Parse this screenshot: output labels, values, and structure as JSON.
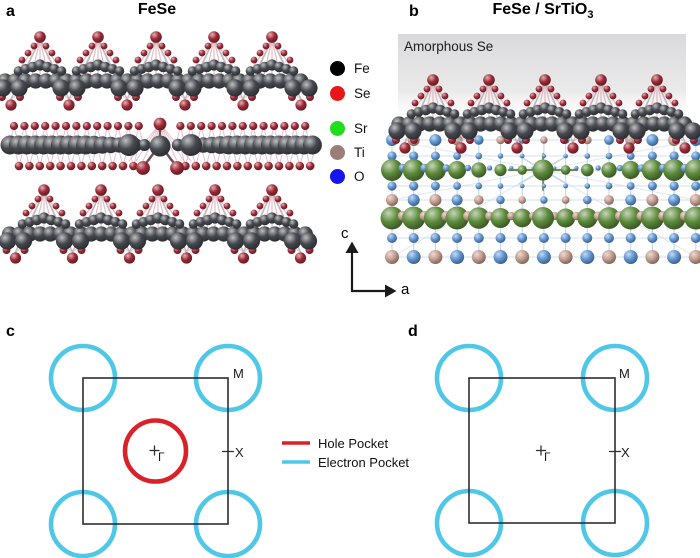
{
  "panels": {
    "a": {
      "label": "a",
      "title": "FeSe"
    },
    "b": {
      "label": "b",
      "title_main": "FeSe / SrTiO",
      "title_sub": "3",
      "overlay_label": "Amorphous Se"
    },
    "c": {
      "label": "c"
    },
    "d": {
      "label": "d"
    }
  },
  "atom_legend": {
    "items": [
      {
        "name": "Fe",
        "color": "#000000"
      },
      {
        "name": "Se",
        "color": "#e81616"
      },
      {
        "name": "Sr",
        "color": "#1ede1e"
      },
      {
        "name": "Ti",
        "color": "#9b7f77"
      },
      {
        "name": "O",
        "color": "#1414ee"
      }
    ]
  },
  "axis_labels": {
    "vertical": "c",
    "horizontal": "a"
  },
  "bz": {
    "c": {
      "gamma": "Γ",
      "m": "M",
      "x": "X",
      "has_hole_pocket": true,
      "electron_pockets": 4
    },
    "d": {
      "gamma": "Γ",
      "m": "M",
      "x": "X",
      "has_hole_pocket": false,
      "electron_pockets": 4
    }
  },
  "bz_legend": {
    "items": [
      {
        "label": "Hole Pocket",
        "color": "#da2128"
      },
      {
        "label": "Electron Pocket",
        "color": "#4fc8e8"
      }
    ]
  },
  "structure_colors": {
    "fe_atom": "#45484e",
    "se_atom": "#9e2936",
    "sr_atom": "#5c8a3a",
    "ti_atom": "#c49c8e",
    "o_atom": "#6095d2",
    "fese_bond_pink": "#d9a8b0",
    "fese_bond_gray": "#b5b3b4",
    "sto_bond_blue": "#bdd3e5",
    "sto_bond_green": "#5f7f46",
    "amorphous_band": "#d8d8da",
    "bz_outline": "#2e2e2e"
  }
}
